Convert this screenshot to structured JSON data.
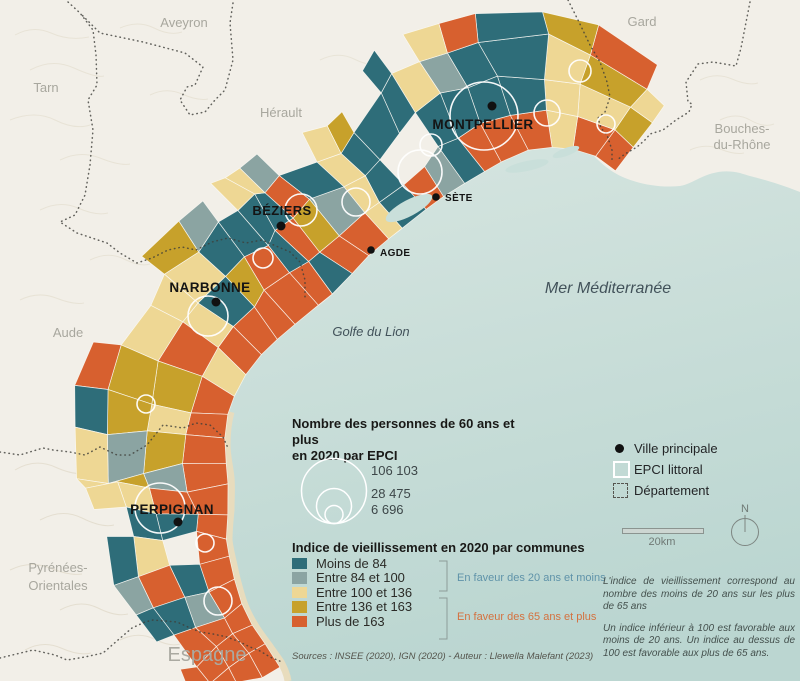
{
  "map": {
    "sea": {
      "mer_label": "Mer Méditerranée",
      "golfe_label": "Golfe du Lion"
    },
    "country_label": "Espagne",
    "departments": [
      {
        "label": "Aveyron"
      },
      {
        "label": "Tarn"
      },
      {
        "label": "Hérault"
      },
      {
        "label": "Gard"
      },
      {
        "label": "Bouches-"
      },
      {
        "label": "du-Rhône"
      },
      {
        "label": "Aude"
      },
      {
        "label": "Pyrénées-"
      },
      {
        "label": "Orientales"
      }
    ],
    "cities": [
      {
        "label": "MONTPELLIER"
      },
      {
        "label": "SÈTE"
      },
      {
        "label": "AGDE"
      },
      {
        "label": "BÉZIERS"
      },
      {
        "label": "NARBONNE"
      },
      {
        "label": "PERPIGNAN"
      }
    ]
  },
  "size_legend": {
    "title_line1": "Nombre des personnes de 60 ans et plus",
    "title_line2": "en 2020 par EPCI",
    "values": [
      "106 103",
      "28 475",
      "6 696"
    ]
  },
  "class_legend": {
    "title": "Indice de vieillissement en 2020 par communes",
    "items": [
      {
        "label": "Moins de 84",
        "color": "#2e6d79"
      },
      {
        "label": "Entre 84 et 100",
        "color": "#8ba4a2"
      },
      {
        "label": "Entre 100 et 136",
        "color": "#eed794"
      },
      {
        "label": "Entre 136 et 163",
        "color": "#c7a12b"
      },
      {
        "label": "Plus de 163",
        "color": "#d7602f"
      }
    ],
    "group_young": {
      "label": "En faveur des 20 ans et moins",
      "color": "#5f93a9"
    },
    "group_old": {
      "label": "En faveur des 65 ans et plus",
      "color": "#d4713f"
    }
  },
  "symbol_legend": {
    "city": "Ville principale",
    "epci": "EPCI littoral",
    "dept": "Département"
  },
  "scale_label": "20km",
  "north_label": "N",
  "notes": {
    "p1": "L'indice de vieillissement correspond au nombre des moins de 20 ans sur les plus de 65 ans",
    "p2": "Un indice inférieur à 100 est favorable aux moins de 20 ans. Un indice au dessus de 100 est favorable aux plus de 65 ans."
  },
  "sources": "Sources : INSEE (2020), IGN (2020) - Auteur : Llewella Malefant (2023)"
}
